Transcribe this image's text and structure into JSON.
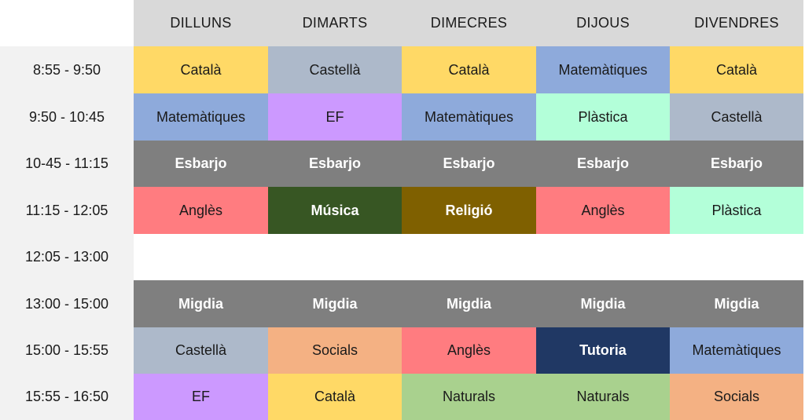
{
  "days": [
    "DILLUNS",
    "DIMARTS",
    "DIMECRES",
    "DIJOUS",
    "DIVENDRES"
  ],
  "colors": {
    "Català": "#ffd966",
    "Castellà": "#adb9ca",
    "Matemàtiques": "#8eaadb",
    "EF": "#cc99ff",
    "Plàstica": "#b3ffd9",
    "Esbarjo": "#7f7f7f",
    "Anglès": "#ff7c80",
    "Música": "#375623",
    "Religió": "#7f6000",
    "Migdia": "#7f7f7f",
    "Socials": "#f4b183",
    "Tutoria": "#203864",
    "Naturals": "#a9d18e"
  },
  "rows": [
    {
      "time": "8:55 - 9:50",
      "cells": [
        "Català",
        "Castellà",
        "Català",
        "Matemàtiques",
        "Català"
      ]
    },
    {
      "time": "9:50 - 10:45",
      "cells": [
        "Matemàtiques",
        "EF",
        "Matemàtiques",
        "Plàstica",
        "Castellà"
      ]
    },
    {
      "time": "10-45 - 11:15",
      "cells": [
        "Esbarjo",
        "Esbarjo",
        "Esbarjo",
        "Esbarjo",
        "Esbarjo"
      ]
    },
    {
      "time": "11:15 - 12:05",
      "cells": [
        "Anglès",
        "Música",
        "Religió",
        "Anglès",
        "Plàstica"
      ]
    },
    {
      "time": "12:05 - 13:00",
      "cells": [
        "",
        "",
        "",
        "",
        ""
      ]
    },
    {
      "time": "13:00 - 15:00",
      "cells": [
        "Migdia",
        "Migdia",
        "Migdia",
        "Migdia",
        "Migdia"
      ]
    },
    {
      "time": "15:00 - 15:55",
      "cells": [
        "Castellà",
        "Socials",
        "Anglès",
        "Tutoria",
        "Matemàtiques"
      ]
    },
    {
      "time": "15:55 - 16:50",
      "cells": [
        "EF",
        "Català",
        "Naturals",
        "Naturals",
        "Socials"
      ]
    }
  ]
}
